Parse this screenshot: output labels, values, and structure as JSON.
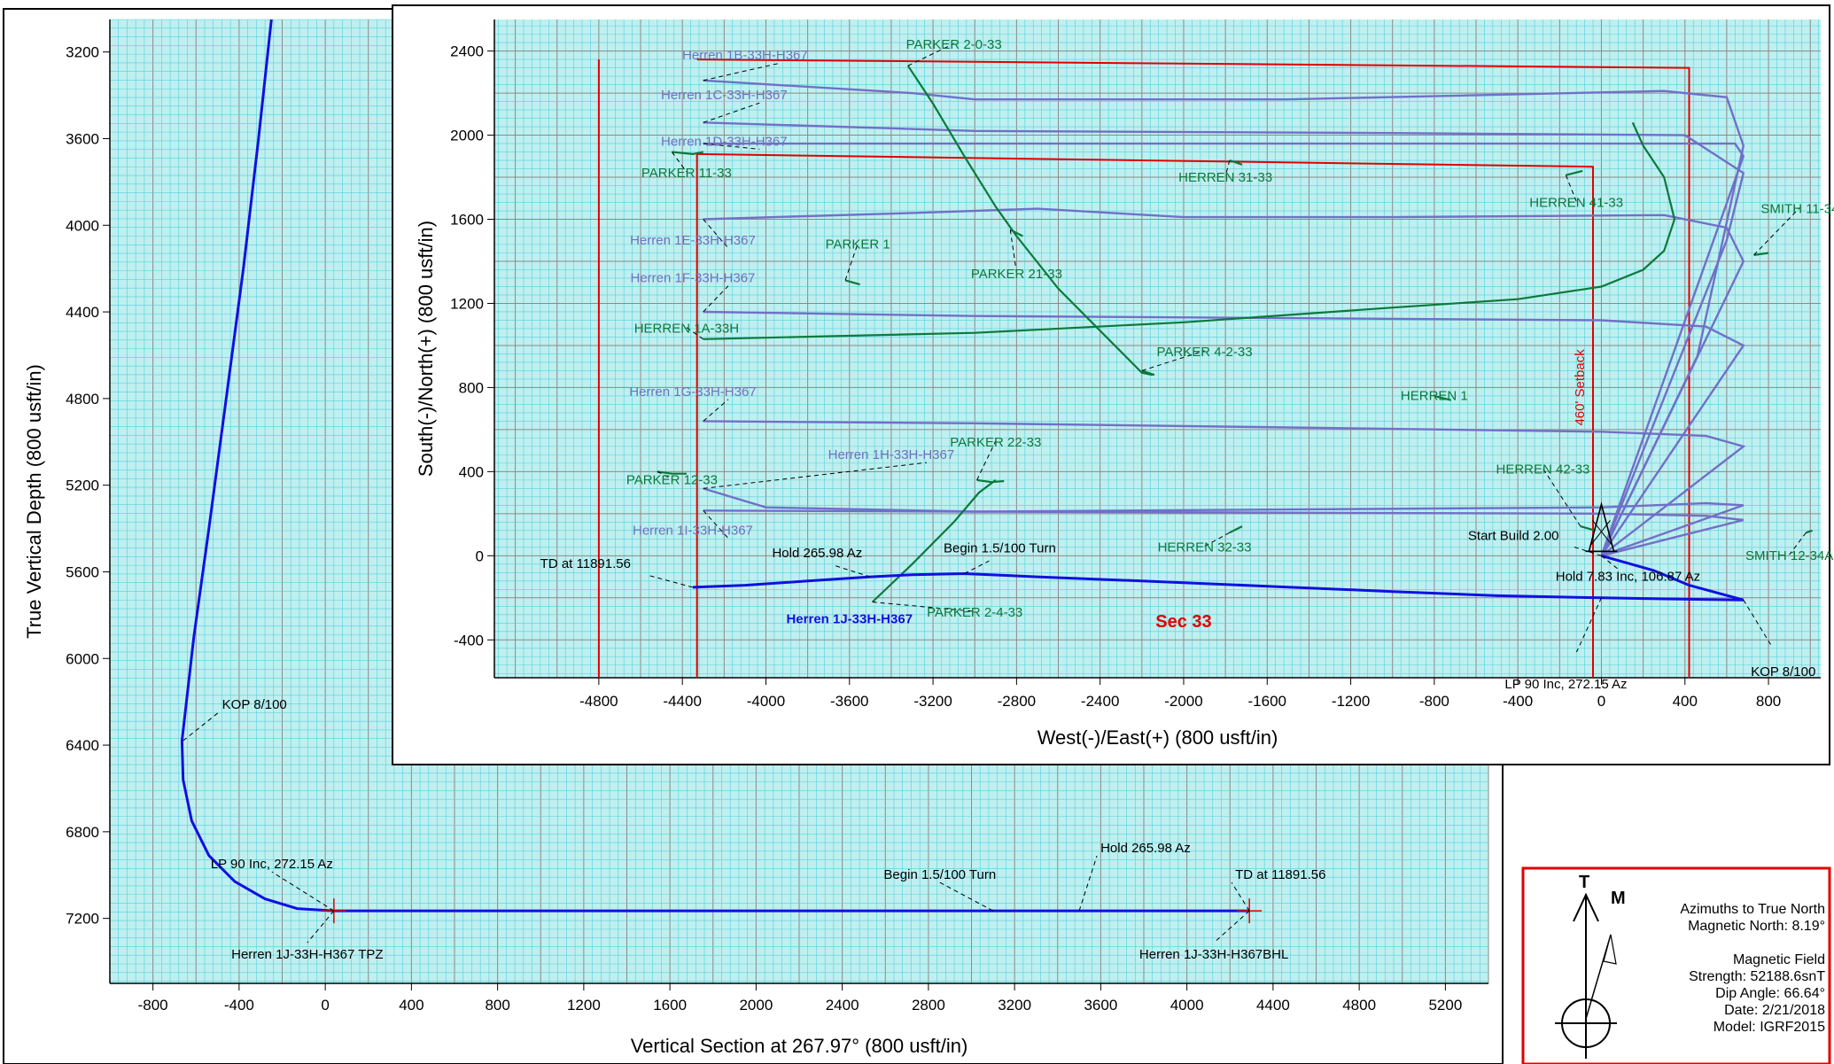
{
  "colors": {
    "grid_bg": "#bfefef",
    "grid_minor": "#55d0e0",
    "grid_major": "#8a8a8a",
    "plan_line": "#1010e0",
    "offset_purple": "#7070c8",
    "offset_green": "#0a7a3a",
    "setback_red": "#e00000",
    "label_purple": "#7070c0",
    "label_green": "#0a7a3a"
  },
  "chart_data": [
    {
      "type": "line",
      "chart": "vertical_section",
      "xlabel": "Vertical Section at 267.97° (800 usft/in)",
      "ylabel": "True Vertical Depth (800 usft/in)",
      "xlim": [
        -1000,
        5400
      ],
      "ylim": [
        7500,
        3050
      ],
      "y_inverted": true,
      "grid": true,
      "x_ticks": [
        "-800",
        "-400",
        "0",
        "400",
        "800",
        "1200",
        "1600",
        "2000",
        "2400",
        "2800",
        "3200",
        "3600",
        "4000",
        "4400",
        "4800",
        "5200"
      ],
      "y_ticks": [
        "3200",
        "3600",
        "4000",
        "4400",
        "4800",
        "5200",
        "5600",
        "6000",
        "6400",
        "6800",
        "7200"
      ],
      "series": [
        {
          "name": "",
          "points": [
            [
              -250,
              3050
            ],
            [
              -310,
              3600
            ],
            [
              -380,
              4200
            ],
            [
              -460,
              4800
            ],
            [
              -540,
              5400
            ],
            [
              -610,
              5900
            ],
            [
              -665,
              6380
            ],
            [
              -660,
              6560
            ],
            [
              -620,
              6750
            ],
            [
              -540,
              6910
            ],
            [
              -420,
              7030
            ],
            [
              -280,
              7110
            ],
            [
              -130,
              7155
            ],
            [
              40,
              7165
            ],
            [
              1200,
              7165
            ],
            [
              2400,
              7165
            ],
            [
              3100,
              7165
            ],
            [
              3500,
              7165
            ],
            [
              4290,
              7165
            ]
          ]
        }
      ],
      "annotations": [
        {
          "text": "KOP 8/100",
          "x": -660,
          "y": 6380
        },
        {
          "text": "LP 90 Inc, 272.15 Az",
          "x": 40,
          "y": 7165
        },
        {
          "text": "Herren 1J-33H-H367 TPZ",
          "x": 40,
          "y": 7165
        },
        {
          "text": "Begin 1.5/100 Turn",
          "x": 3100,
          "y": 7165
        },
        {
          "text": "Hold 265.98 Az",
          "x": 3500,
          "y": 7165
        },
        {
          "text": "TD at 11891.56",
          "x": 4290,
          "y": 7165
        },
        {
          "text": "Herren 1J-33H-H367BHL",
          "x": 4290,
          "y": 7165
        }
      ]
    },
    {
      "type": "line",
      "chart": "plan_view",
      "xlabel": "West(-)/East(+) (800 usft/in)",
      "ylabel": "South(-)/North(+) (800 usft/in)",
      "xlim": [
        -5300,
        1050
      ],
      "ylim": [
        -580,
        2550
      ],
      "grid": true,
      "x_ticks": [
        "-4800",
        "-4400",
        "-4000",
        "-3600",
        "-3200",
        "-2800",
        "-2400",
        "-2000",
        "-1600",
        "-1200",
        "-800",
        "-400",
        "0",
        "400",
        "800"
      ],
      "y_ticks": [
        "2400",
        "2000",
        "1600",
        "1200",
        "800",
        "400",
        "0",
        "-400"
      ],
      "main_well": {
        "name": "Herren 1J-33H-H367",
        "points": [
          [
            0,
            0
          ],
          [
            250,
            -70
          ],
          [
            420,
            -140
          ],
          [
            680,
            -210
          ],
          [
            300,
            -205
          ],
          [
            0,
            -200
          ],
          [
            -500,
            -190
          ],
          [
            -1000,
            -170
          ],
          [
            -1600,
            -145
          ],
          [
            -2200,
            -120
          ],
          [
            -2700,
            -100
          ],
          [
            -3050,
            -85
          ],
          [
            -3300,
            -90
          ],
          [
            -3500,
            -100
          ],
          [
            -3800,
            -120
          ],
          [
            -4100,
            -140
          ],
          [
            -4350,
            -150
          ]
        ]
      },
      "offset_wells_purple": [
        {
          "name": "Herren 1B-33H-H367",
          "label_at": [
            -4100,
            2360
          ],
          "points": [
            [
              0,
              0
            ],
            [
              460,
              950
            ],
            [
              680,
              1950
            ],
            [
              600,
              2180
            ],
            [
              300,
              2210
            ],
            [
              -1500,
              2170
            ],
            [
              -3000,
              2170
            ],
            [
              -3300,
              2200
            ],
            [
              -4300,
              2260
            ]
          ]
        },
        {
          "name": "Herren 1C-33H-H367",
          "label_at": [
            -4200,
            2170
          ],
          "points": [
            [
              0,
              0
            ],
            [
              600,
              1500
            ],
            [
              680,
              1820
            ],
            [
              400,
              2000
            ],
            [
              -1000,
              2010
            ],
            [
              -3000,
              2020
            ],
            [
              -4300,
              2060
            ]
          ]
        },
        {
          "name": "Herren 1D-33H-H367",
          "label_at": [
            -4200,
            1950
          ],
          "points": [
            [
              0,
              0
            ],
            [
              680,
              1900
            ],
            [
              640,
              1960
            ],
            [
              300,
              1960
            ],
            [
              -1500,
              1960
            ],
            [
              -3000,
              1960
            ],
            [
              -4300,
              1960
            ]
          ]
        },
        {
          "name": "Herren 1E-33H-H367",
          "label_at": [
            -4350,
            1480
          ],
          "points": [
            [
              0,
              0
            ],
            [
              680,
              1400
            ],
            [
              600,
              1560
            ],
            [
              300,
              1620
            ],
            [
              -1000,
              1610
            ],
            [
              -2000,
              1610
            ],
            [
              -2700,
              1650
            ],
            [
              -3300,
              1630
            ],
            [
              -4300,
              1600
            ]
          ]
        },
        {
          "name": "Herren 1F-33H-H367",
          "label_at": [
            -4350,
            1300
          ],
          "points": [
            [
              0,
              0
            ],
            [
              680,
              1000
            ],
            [
              500,
              1090
            ],
            [
              0,
              1120
            ],
            [
              -1500,
              1130
            ],
            [
              -3000,
              1140
            ],
            [
              -4300,
              1160
            ]
          ]
        },
        {
          "name": "Herren 1G-33H-H367",
          "label_at": [
            -4350,
            760
          ],
          "points": [
            [
              0,
              0
            ],
            [
              680,
              520
            ],
            [
              500,
              570
            ],
            [
              0,
              590
            ],
            [
              -1500,
              610
            ],
            [
              -3000,
              630
            ],
            [
              -4300,
              640
            ]
          ]
        },
        {
          "name": "Herren 1H-33H-H367",
          "label_at": [
            -3400,
            460
          ],
          "points": [
            [
              0,
              0
            ],
            [
              680,
              240
            ],
            [
              500,
              250
            ],
            [
              0,
              230
            ],
            [
              -1500,
              220
            ],
            [
              -3000,
              210
            ],
            [
              -4000,
              230
            ],
            [
              -4300,
              320
            ]
          ]
        },
        {
          "name": "Herren 1I-33H-H367",
          "label_at": [
            -4350,
            100
          ],
          "points": [
            [
              0,
              0
            ],
            [
              680,
              170
            ],
            [
              500,
              190
            ],
            [
              0,
              200
            ],
            [
              -1500,
              205
            ],
            [
              -3000,
              210
            ],
            [
              -4300,
              215
            ]
          ]
        }
      ],
      "offset_wells_green": [
        {
          "name": "PARKER 2-0-33",
          "label_at": [
            -3100,
            2410
          ],
          "points": [
            [
              -3320,
              2330
            ],
            [
              -3200,
              2150
            ],
            [
              -3050,
              1900
            ],
            [
              -2900,
              1660
            ],
            [
              -2800,
              1520
            ],
            [
              -2600,
              1270
            ],
            [
              -2400,
              1070
            ],
            [
              -2200,
              870
            ],
            [
              -2150,
              860
            ]
          ]
        },
        {
          "name": "PARKER 11-33",
          "label_at": [
            -4380,
            1800
          ],
          "points": [
            [
              -4450,
              1920
            ],
            [
              -4350,
              1910
            ],
            [
              -4300,
              1920
            ]
          ]
        },
        {
          "name": "HERREN 31-33",
          "label_at": [
            -1800,
            1780
          ],
          "points": [
            [
              -1780,
              1880
            ],
            [
              -1720,
              1860
            ]
          ]
        },
        {
          "name": "HERREN 41-33",
          "label_at": [
            -120,
            1660
          ],
          "points": [
            [
              -170,
              1810
            ],
            [
              -90,
              1830
            ]
          ]
        },
        {
          "name": "SMITH 11-34",
          "label_at": [
            950,
            1630
          ],
          "points": [
            [
              730,
              1430
            ],
            [
              800,
              1440
            ]
          ]
        },
        {
          "name": "PARKER 1",
          "label_at": [
            -3560,
            1460
          ],
          "points": [
            [
              -3620,
              1310
            ],
            [
              -3550,
              1290
            ]
          ]
        },
        {
          "name": "PARKER 21-33",
          "label_at": [
            -2800,
            1320
          ],
          "points": [
            [
              -2830,
              1550
            ],
            [
              -2770,
              1520
            ]
          ]
        },
        {
          "name": "HERREN 1A-33H",
          "label_at": [
            -4380,
            1060
          ],
          "points": [
            [
              -4300,
              1030
            ],
            [
              -3000,
              1060
            ],
            [
              -2000,
              1110
            ],
            [
              -1000,
              1180
            ],
            [
              -400,
              1220
            ],
            [
              0,
              1280
            ],
            [
              200,
              1360
            ],
            [
              300,
              1450
            ],
            [
              350,
              1600
            ],
            [
              300,
              1800
            ],
            [
              200,
              1950
            ],
            [
              150,
              2060
            ]
          ]
        },
        {
          "name": "PARKER 4-2-33",
          "label_at": [
            -1900,
            950
          ],
          "points": [
            [
              -2200,
              880
            ],
            [
              -2140,
              860
            ]
          ]
        },
        {
          "name": "HERREN 1",
          "label_at": [
            -800,
            740
          ],
          "points": [
            [
              -800,
              760
            ],
            [
              -720,
              740
            ]
          ]
        },
        {
          "name": "PARKER 22-33",
          "label_at": [
            -2900,
            520
          ],
          "points": [
            [
              -2990,
              360
            ],
            [
              -2920,
              350
            ],
            [
              -2860,
              355
            ]
          ]
        },
        {
          "name": "PARKER 12-33",
          "label_at": [
            -4450,
            340
          ],
          "points": [
            [
              -4520,
              400
            ],
            [
              -4450,
              390
            ],
            [
              -4380,
              390
            ]
          ]
        },
        {
          "name": "HERREN 42-33",
          "label_at": [
            -280,
            390
          ],
          "points": [
            [
              -100,
              140
            ],
            [
              -30,
              120
            ]
          ]
        },
        {
          "name": "HERREN 32-33",
          "label_at": [
            -1900,
            20
          ],
          "points": [
            [
              -1780,
              110
            ],
            [
              -1720,
              140
            ]
          ]
        },
        {
          "name": "SMITH 12-34A",
          "label_at": [
            900,
            -20
          ],
          "points": [
            [
              980,
              110
            ],
            [
              1010,
              120
            ]
          ]
        },
        {
          "name": "PARKER 2-4-33",
          "label_at": [
            -3000,
            -290
          ],
          "points": [
            [
              -3490,
              -220
            ],
            [
              -3300,
              -40
            ],
            [
              -3100,
              160
            ],
            [
              -2980,
              300
            ],
            [
              -2900,
              360
            ]
          ]
        }
      ],
      "setback_lines": [
        {
          "points": [
            [
              -4330,
              2360
            ],
            [
              420,
              2320
            ],
            [
              420,
              -580
            ]
          ]
        },
        {
          "points": [
            [
              -4800,
              2360
            ],
            [
              -4800,
              -580
            ]
          ]
        },
        {
          "points": [
            [
              -4330,
              1910
            ],
            [
              -40,
              1850
            ],
            [
              -40,
              -580
            ]
          ]
        },
        {
          "points": [
            [
              -4330,
              1910
            ],
            [
              -4330,
              -580
            ]
          ]
        }
      ],
      "annotations": [
        {
          "text": "TD at 11891.56",
          "x": -4350,
          "y": -150
        },
        {
          "text": "Hold 265.98 Az",
          "x": -3500,
          "y": -100
        },
        {
          "text": "Begin 1.5/100 Turn",
          "x": -3050,
          "y": -85
        },
        {
          "text": "Start Build 2.00",
          "x": 0,
          "y": 0
        },
        {
          "text": "Hold 7.83 Inc, 106.87 Az",
          "x": 0,
          "y": 0
        },
        {
          "text": "LP 90 Inc, 272.15 Az",
          "x": 0,
          "y": -200
        },
        {
          "text": "KOP 8/100",
          "x": 680,
          "y": -210
        }
      ],
      "labels": {
        "sec": "Sec 33",
        "setback": "460' Setback"
      }
    }
  ],
  "legend_box": {
    "north_labels": {
      "t": "T",
      "m": "M"
    },
    "lines": [
      "Azimuths to True North",
      "Magnetic North: 8.19°",
      "",
      "Magnetic Field",
      "Strength: 52188.6snT",
      "Dip Angle: 66.64°",
      "Date: 2/21/2018",
      "Model: IGRF2015"
    ]
  }
}
